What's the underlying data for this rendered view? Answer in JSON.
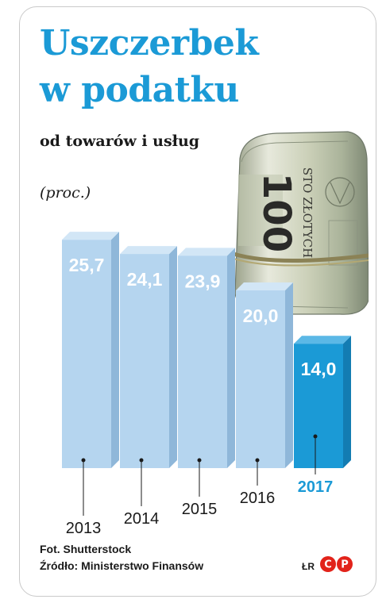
{
  "header": {
    "title_line1": "Uszczerbek",
    "title_line2": "w podatku",
    "subtitle": "od towarów i usług",
    "unit": "(proc.)"
  },
  "photo": {
    "banknote_value": "100",
    "banknote_text": "STO ZŁOTYCH"
  },
  "footer": {
    "credit": "Fot. Shutterstock",
    "source": "Źródło: Ministerstwo Finansów",
    "author": "ŁR",
    "logo": "CP"
  },
  "colors": {
    "title": "#1b9ad6",
    "bar_face": "#b5d5ef",
    "bar_side": "#8fb7d9",
    "bar_top": "#d2e6f6",
    "highlight_face": "#1b9ad6",
    "highlight_side": "#137cb2",
    "highlight_top": "#5bb8e6",
    "logo": "#e2231a"
  },
  "chart_data": {
    "type": "bar",
    "categories": [
      "2013",
      "2014",
      "2015",
      "2016",
      "2017"
    ],
    "values": [
      25.7,
      24.1,
      23.9,
      20.0,
      14.0
    ],
    "value_labels": [
      "25,7",
      "24,1",
      "23,9",
      "20,0",
      "14,0"
    ],
    "highlight": "2017",
    "ylabel": "(proc.)",
    "grid": false,
    "legend": "none"
  }
}
